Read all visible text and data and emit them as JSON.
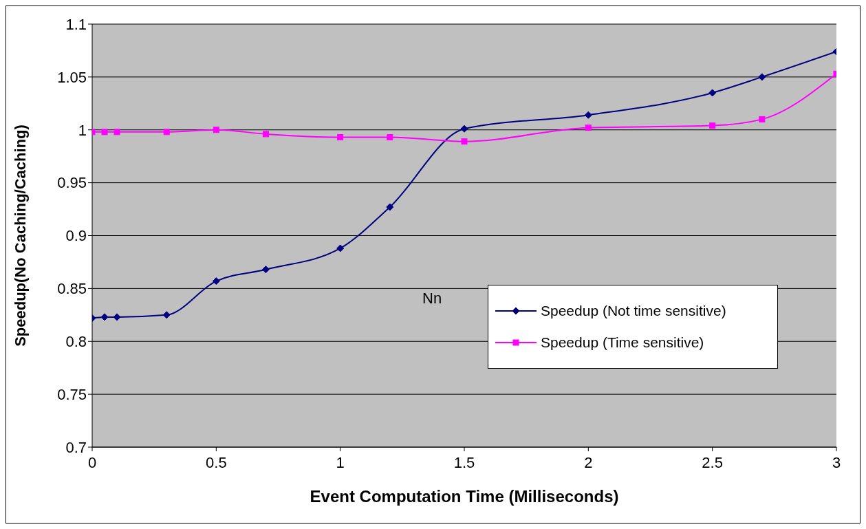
{
  "chart_data": {
    "type": "line",
    "xlabel": "Event Computation Time (Milliseconds)",
    "ylabel": "Speedup(No Caching/Caching)",
    "annotations": [
      "Nn"
    ],
    "x": [
      0,
      0.05,
      0.1,
      0.3,
      0.5,
      0.7,
      1,
      1.2,
      1.5,
      2,
      2.5,
      2.7,
      3
    ],
    "series": [
      {
        "name": "Speedup (Not time sensitive)",
        "color": "#000080",
        "marker": "diamond",
        "values": [
          0.822,
          0.823,
          0.823,
          0.825,
          0.857,
          0.868,
          0.888,
          0.927,
          1.001,
          1.014,
          1.035,
          1.05,
          1.074
        ]
      },
      {
        "name": "Speedup (Time sensitive)",
        "color": "#ff00ff",
        "marker": "square",
        "values": [
          0.998,
          0.998,
          0.998,
          0.998,
          1.0,
          0.996,
          0.993,
          0.993,
          0.989,
          1.002,
          1.004,
          1.01,
          1.053
        ]
      }
    ],
    "xlim": [
      0,
      3
    ],
    "xticks": [
      0,
      0.5,
      1,
      1.5,
      2,
      2.5,
      3
    ],
    "ylim": [
      0.7,
      1.1
    ],
    "yticks": [
      0.7,
      0.75,
      0.8,
      0.85,
      0.9,
      0.95,
      1,
      1.05,
      1.1
    ],
    "grid": "y",
    "legend": "right",
    "line_style": "solid"
  }
}
